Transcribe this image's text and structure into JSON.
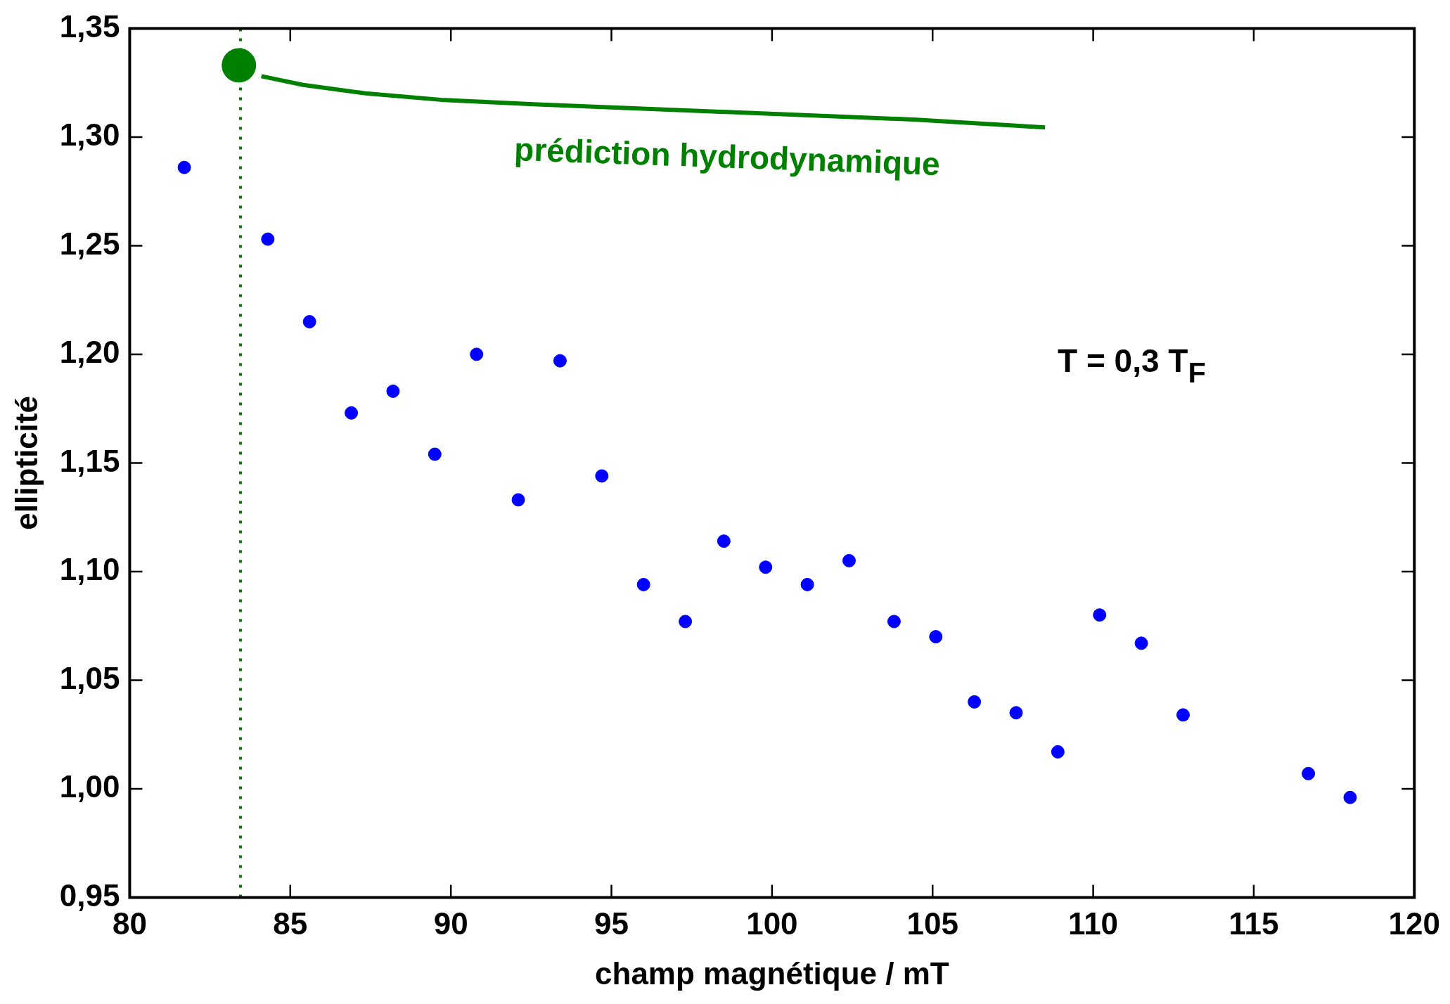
{
  "chart_data": {
    "type": "scatter",
    "xlabel": "champ magnétique / mT",
    "ylabel": "ellipticité",
    "xlim": [
      80,
      120
    ],
    "xticks": [
      80,
      85,
      90,
      95,
      100,
      105,
      110,
      115,
      120
    ],
    "ylim": [
      0.95,
      1.35
    ],
    "yticks": [
      {
        "value": 0.95,
        "label": "0,95"
      },
      {
        "value": 1.0,
        "label": "1,00"
      },
      {
        "value": 1.05,
        "label": "1,05"
      },
      {
        "value": 1.1,
        "label": "1,10"
      },
      {
        "value": 1.15,
        "label": "1,15"
      },
      {
        "value": 1.2,
        "label": "1,20"
      },
      {
        "value": 1.25,
        "label": "1,25"
      },
      {
        "value": 1.3,
        "label": "1,30"
      },
      {
        "value": 1.35,
        "label": "1,35"
      }
    ],
    "grid": false,
    "legend": false,
    "marker": "circle",
    "series": [
      {
        "color": "#0000ff",
        "x": [
          81.7,
          84.3,
          85.6,
          86.9,
          88.2,
          89.5,
          90.8,
          92.1,
          93.4,
          94.7,
          96.0,
          97.3,
          98.5,
          99.8,
          101.1,
          102.4,
          103.8,
          105.1,
          106.3,
          107.6,
          108.9,
          110.2,
          111.5,
          112.8,
          116.7,
          118.0
        ],
        "values": [
          1.286,
          1.253,
          1.215,
          1.173,
          1.183,
          1.154,
          1.2,
          1.133,
          1.197,
          1.144,
          1.094,
          1.077,
          1.114,
          1.102,
          1.094,
          1.105,
          1.077,
          1.07,
          1.04,
          1.035,
          1.017,
          1.08,
          1.067,
          1.034,
          1.007,
          0.996
        ]
      },
      {
        "type": "line",
        "marker": "none",
        "color": "#008000",
        "x": [
          84.1,
          85.4,
          87.4,
          89.8,
          92.7,
          98.6,
          104.5,
          108.5
        ],
        "values": [
          1.328,
          1.324,
          1.32,
          1.317,
          1.315,
          1.3115,
          1.308,
          1.3044
        ]
      },
      {
        "type": "bubble",
        "color": "#008000",
        "x": [
          83.4
        ],
        "values": [
          1.333
        ],
        "sizes": [
          1
        ]
      }
    ],
    "ref_lines": [
      {
        "axis": "x",
        "value": 83.45,
        "color": "#008000",
        "line_style": "dotted"
      }
    ],
    "annotations": [
      "prédiction hydrodynamique",
      "T = 0,3 T$_{F}$"
    ]
  }
}
